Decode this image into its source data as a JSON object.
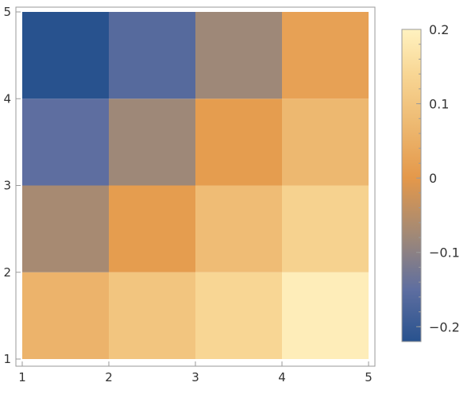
{
  "chart_data": {
    "type": "heatmap",
    "title": "",
    "xlabel": "",
    "ylabel": "",
    "xlim": [
      1,
      5
    ],
    "ylim": [
      1,
      5
    ],
    "x_ticks": [
      "1",
      "2",
      "3",
      "4",
      "5"
    ],
    "y_ticks": [
      "1",
      "2",
      "3",
      "4",
      "5"
    ],
    "grid": false,
    "colorscheme": "blue-brown-orange-cream",
    "colorbar": {
      "range": [
        -0.22,
        0.2
      ],
      "ticks": [
        "0.2",
        "0.1",
        "0",
        "−0.1",
        "−0.2"
      ],
      "tick_values": [
        0.2,
        0.1,
        0,
        -0.1,
        -0.2
      ],
      "placement": "right"
    },
    "cells": [
      {
        "x": 1,
        "y": 1,
        "value": 0.06
      },
      {
        "x": 2,
        "y": 1,
        "value": 0.1
      },
      {
        "x": 3,
        "y": 1,
        "value": 0.14
      },
      {
        "x": 4,
        "y": 1,
        "value": 0.19
      },
      {
        "x": 1,
        "y": 2,
        "value": -0.07
      },
      {
        "x": 2,
        "y": 2,
        "value": 0.01
      },
      {
        "x": 3,
        "y": 2,
        "value": 0.08
      },
      {
        "x": 4,
        "y": 2,
        "value": 0.13
      },
      {
        "x": 1,
        "y": 3,
        "value": -0.15
      },
      {
        "x": 2,
        "y": 3,
        "value": -0.08
      },
      {
        "x": 3,
        "y": 3,
        "value": 0.01
      },
      {
        "x": 4,
        "y": 3,
        "value": 0.07
      },
      {
        "x": 1,
        "y": 4,
        "value": -0.22
      },
      {
        "x": 2,
        "y": 4,
        "value": -0.16
      },
      {
        "x": 3,
        "y": 4,
        "value": -0.08
      },
      {
        "x": 4,
        "y": 4,
        "value": 0.02
      }
    ]
  }
}
